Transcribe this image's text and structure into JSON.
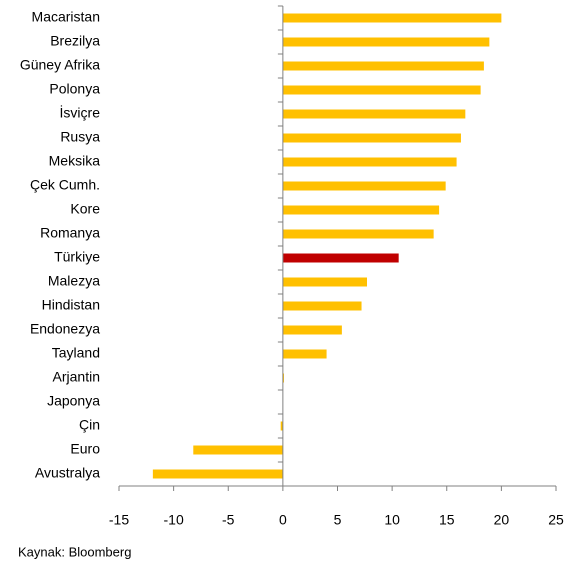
{
  "chart_data": {
    "type": "barh",
    "categories": [
      "Macaristan",
      "Brezilya",
      "Güney Afrika",
      "Polonya",
      "İsviçre",
      "Rusya",
      "Meksika",
      "Çek Cumh.",
      "Kore",
      "Romanya",
      "Türkiye",
      "Malezya",
      "Hindistan",
      "Endonezya",
      "Tayland",
      "Arjantin",
      "Japonya",
      "Çin",
      "Euro",
      "Avustralya"
    ],
    "values": [
      20.0,
      18.9,
      18.4,
      18.1,
      16.7,
      16.3,
      15.9,
      14.9,
      14.3,
      13.8,
      10.6,
      7.7,
      7.2,
      5.4,
      4.0,
      0.1,
      0,
      -0.2,
      -8.2,
      -11.9
    ],
    "colors": [
      "#ffc000",
      "#ffc000",
      "#ffc000",
      "#ffc000",
      "#ffc000",
      "#ffc000",
      "#ffc000",
      "#ffc000",
      "#ffc000",
      "#ffc000",
      "#c00000",
      "#ffc000",
      "#ffc000",
      "#ffc000",
      "#ffc000",
      "#ffc000",
      "#ffc000",
      "#ffc000",
      "#ffc000",
      "#ffc000"
    ],
    "xlim": [
      -15,
      25
    ],
    "xticks": [
      -15,
      -10,
      -5,
      0,
      5,
      10,
      15,
      20,
      25
    ],
    "source": "Kaynak: Bloomberg"
  }
}
